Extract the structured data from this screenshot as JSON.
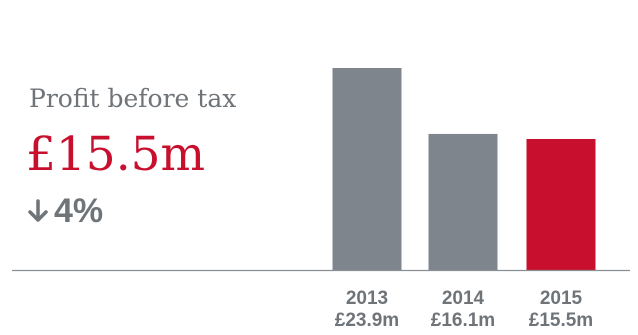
{
  "kpi": {
    "label": "Profit before tax",
    "value": "£15.5m",
    "change": "4%",
    "change_direction": "down",
    "change_icon": "arrow-down-icon"
  },
  "colors": {
    "accent": "#c8102e",
    "bar": "#7f858c",
    "text_gray": "#6f7479",
    "axis": "#8a8f94"
  },
  "chart_data": {
    "type": "bar",
    "categories": [
      "2013",
      "2014",
      "2015"
    ],
    "values": [
      23.9,
      16.1,
      15.5
    ],
    "value_labels": [
      "£23.9m",
      "£16.1m",
      "£15.5m"
    ],
    "highlight_index": 2,
    "title": "",
    "xlabel": "",
    "ylabel": "",
    "ylim": [
      0,
      23.9
    ],
    "grid": false,
    "legend": "none"
  }
}
